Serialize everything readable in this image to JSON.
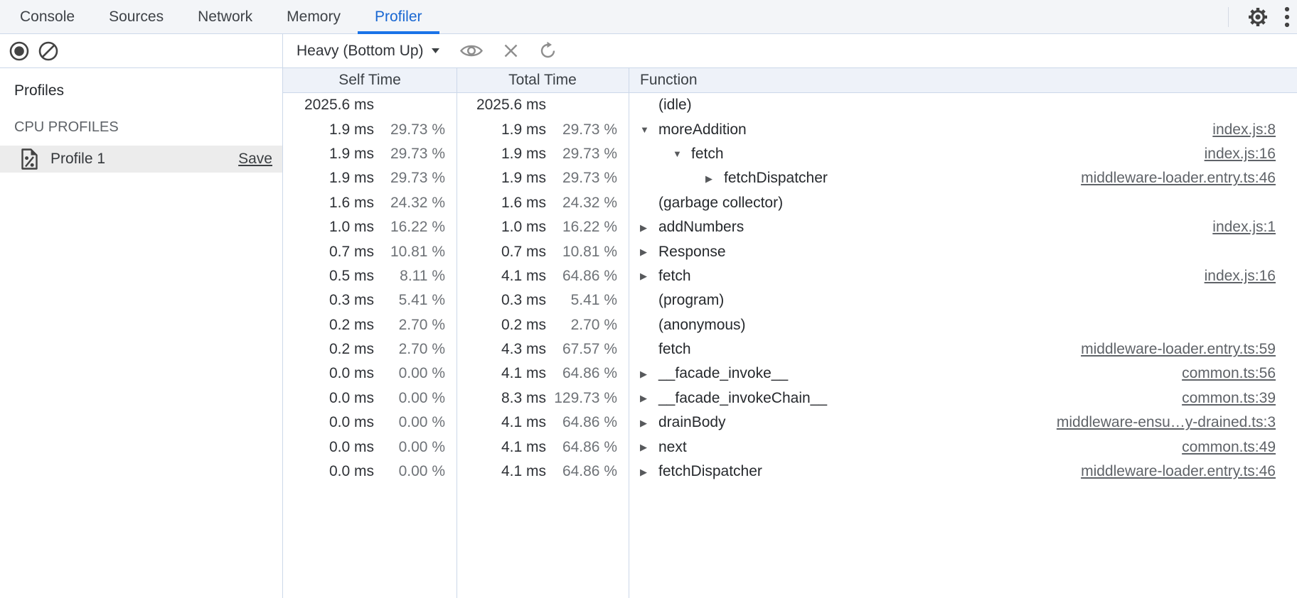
{
  "tabs": {
    "items": [
      {
        "label": "Console",
        "active": false
      },
      {
        "label": "Sources",
        "active": false
      },
      {
        "label": "Network",
        "active": false
      },
      {
        "label": "Memory",
        "active": false
      },
      {
        "label": "Profiler",
        "active": true
      }
    ]
  },
  "tabbar_icons": {
    "settings": "gear-icon",
    "more": "kebab-menu-icon"
  },
  "toolbar": {
    "record_icon": "record-icon",
    "clear_icon": "clear-icon",
    "view_dropdown_label": "Heavy (Bottom Up)",
    "dropdown_caret_icon": "chevron-down-icon",
    "focus_icon": "eye-icon",
    "exclude_icon": "close-icon",
    "refresh_icon": "refresh-icon"
  },
  "sidebar": {
    "profiles_heading": "Profiles",
    "section_heading": "CPU PROFILES",
    "profile": {
      "icon": "profile-document-icon",
      "name": "Profile 1",
      "save_label": "Save"
    }
  },
  "grid": {
    "columns": [
      "Self Time",
      "Total Time",
      "Function"
    ],
    "rows": [
      {
        "self_ms": "2025.6 ms",
        "self_pct": "",
        "total_ms": "2025.6 ms",
        "total_pct": "",
        "fn": "(idle)",
        "depth": 0,
        "arrow": "",
        "link": ""
      },
      {
        "self_ms": "1.9 ms",
        "self_pct": "29.73 %",
        "total_ms": "1.9 ms",
        "total_pct": "29.73 %",
        "fn": "moreAddition",
        "depth": 0,
        "arrow": "down",
        "link": "index.js:8"
      },
      {
        "self_ms": "1.9 ms",
        "self_pct": "29.73 %",
        "total_ms": "1.9 ms",
        "total_pct": "29.73 %",
        "fn": "fetch",
        "depth": 1,
        "arrow": "down",
        "link": "index.js:16"
      },
      {
        "self_ms": "1.9 ms",
        "self_pct": "29.73 %",
        "total_ms": "1.9 ms",
        "total_pct": "29.73 %",
        "fn": "fetchDispatcher",
        "depth": 2,
        "arrow": "right",
        "link": "middleware-loader.entry.ts:46"
      },
      {
        "self_ms": "1.6 ms",
        "self_pct": "24.32 %",
        "total_ms": "1.6 ms",
        "total_pct": "24.32 %",
        "fn": "(garbage collector)",
        "depth": 0,
        "arrow": "",
        "link": ""
      },
      {
        "self_ms": "1.0 ms",
        "self_pct": "16.22 %",
        "total_ms": "1.0 ms",
        "total_pct": "16.22 %",
        "fn": "addNumbers",
        "depth": 0,
        "arrow": "right",
        "link": "index.js:1"
      },
      {
        "self_ms": "0.7 ms",
        "self_pct": "10.81 %",
        "total_ms": "0.7 ms",
        "total_pct": "10.81 %",
        "fn": "Response",
        "depth": 0,
        "arrow": "right",
        "link": ""
      },
      {
        "self_ms": "0.5 ms",
        "self_pct": "8.11 %",
        "total_ms": "4.1 ms",
        "total_pct": "64.86 %",
        "fn": "fetch",
        "depth": 0,
        "arrow": "right",
        "link": "index.js:16"
      },
      {
        "self_ms": "0.3 ms",
        "self_pct": "5.41 %",
        "total_ms": "0.3 ms",
        "total_pct": "5.41 %",
        "fn": "(program)",
        "depth": 0,
        "arrow": "",
        "link": ""
      },
      {
        "self_ms": "0.2 ms",
        "self_pct": "2.70 %",
        "total_ms": "0.2 ms",
        "total_pct": "2.70 %",
        "fn": "(anonymous)",
        "depth": 0,
        "arrow": "",
        "link": ""
      },
      {
        "self_ms": "0.2 ms",
        "self_pct": "2.70 %",
        "total_ms": "4.3 ms",
        "total_pct": "67.57 %",
        "fn": "fetch",
        "depth": 0,
        "arrow": "",
        "link": "middleware-loader.entry.ts:59"
      },
      {
        "self_ms": "0.0 ms",
        "self_pct": "0.00 %",
        "total_ms": "4.1 ms",
        "total_pct": "64.86 %",
        "fn": "__facade_invoke__",
        "depth": 0,
        "arrow": "right",
        "link": "common.ts:56"
      },
      {
        "self_ms": "0.0 ms",
        "self_pct": "0.00 %",
        "total_ms": "8.3 ms",
        "total_pct": "129.73 %",
        "fn": "__facade_invokeChain__",
        "depth": 0,
        "arrow": "right",
        "link": "common.ts:39"
      },
      {
        "self_ms": "0.0 ms",
        "self_pct": "0.00 %",
        "total_ms": "4.1 ms",
        "total_pct": "64.86 %",
        "fn": "drainBody",
        "depth": 0,
        "arrow": "right",
        "link": "middleware-ensu…y-drained.ts:3"
      },
      {
        "self_ms": "0.0 ms",
        "self_pct": "0.00 %",
        "total_ms": "4.1 ms",
        "total_pct": "64.86 %",
        "fn": "next",
        "depth": 0,
        "arrow": "right",
        "link": "common.ts:49"
      },
      {
        "self_ms": "0.0 ms",
        "self_pct": "0.00 %",
        "total_ms": "4.1 ms",
        "total_pct": "64.86 %",
        "fn": "fetchDispatcher",
        "depth": 0,
        "arrow": "right",
        "link": "middleware-loader.entry.ts:46"
      }
    ]
  },
  "colors": {
    "accent_blue": "#1a73e8",
    "active_tab_text": "#1967d2",
    "hairline": "#ccd8e9",
    "header_bg": "#eef2f9",
    "tabbar_bg": "#f3f5f8",
    "selected_profile_bg": "#ececec",
    "link_gray": "#5f6368"
  }
}
